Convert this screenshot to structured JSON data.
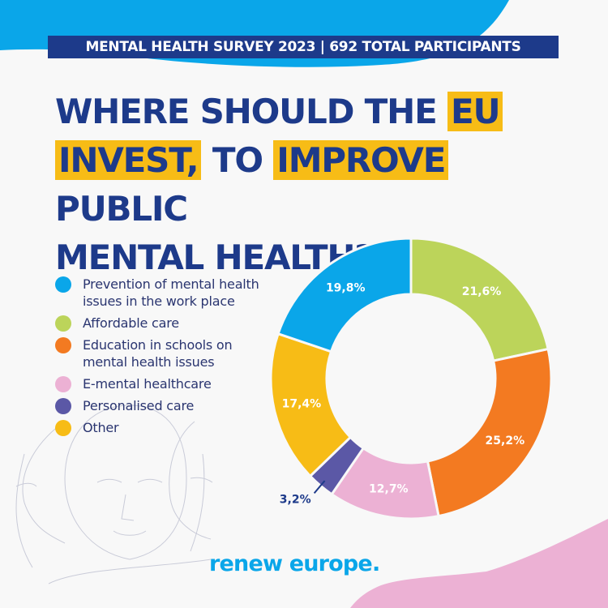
{
  "banner": {
    "text": "MENTAL HEALTH SURVEY 2023 | 692 TOTAL PARTICIPANTS"
  },
  "title": {
    "part1": "WHERE SHOULD THE ",
    "highlight1": "EU",
    "highlight1b": "INVEST,",
    "part2": " TO ",
    "highlight2": "IMPROVE",
    "part3": " PUBLIC",
    "part4": "MENTAL HEALTH?"
  },
  "colors": {
    "navy": "#1d3a8a",
    "highlight": "#f7bc16",
    "top_blob": "#0aa6e9",
    "bottom_blob": "#ecb1d4",
    "background": "#f8f8f8"
  },
  "legend": [
    {
      "label": "Prevention of mental health issues in the work place",
      "color": "#0aa6e9"
    },
    {
      "label": "Affordable care",
      "color": "#bcd45a"
    },
    {
      "label": "Education in schools on mental health issues",
      "color": "#f37a21"
    },
    {
      "label": "E-mental healthcare",
      "color": "#ecb1d4"
    },
    {
      "label": "Personalised care",
      "color": "#5b58a6"
    },
    {
      "label": "Other",
      "color": "#f7bc16"
    }
  ],
  "chart_data": {
    "type": "pie",
    "variant": "donut",
    "title": "WHERE SHOULD THE EU INVEST, TO IMPROVE PUBLIC MENTAL HEALTH?",
    "subtitle": "MENTAL HEALTH SURVEY 2023 | 692 TOTAL PARTICIPANTS",
    "categories": [
      "Affordable care",
      "Education in schools on mental health issues",
      "E-mental healthcare",
      "Personalised care",
      "Other",
      "Prevention of mental health issues in the work place"
    ],
    "values": [
      21.6,
      25.2,
      12.7,
      3.2,
      17.4,
      19.8
    ],
    "labels": [
      "21,6%",
      "25,2%",
      "12,7%",
      "3,2%",
      "17,4%",
      "19,8%"
    ],
    "colors": [
      "#bcd45a",
      "#f37a21",
      "#ecb1d4",
      "#5b58a6",
      "#f7bc16",
      "#0aa6e9"
    ],
    "start_angle": "12 o'clock",
    "direction": "clockwise",
    "legend_position": "left",
    "unit": "%"
  },
  "footer": {
    "logo": "renew europe."
  }
}
